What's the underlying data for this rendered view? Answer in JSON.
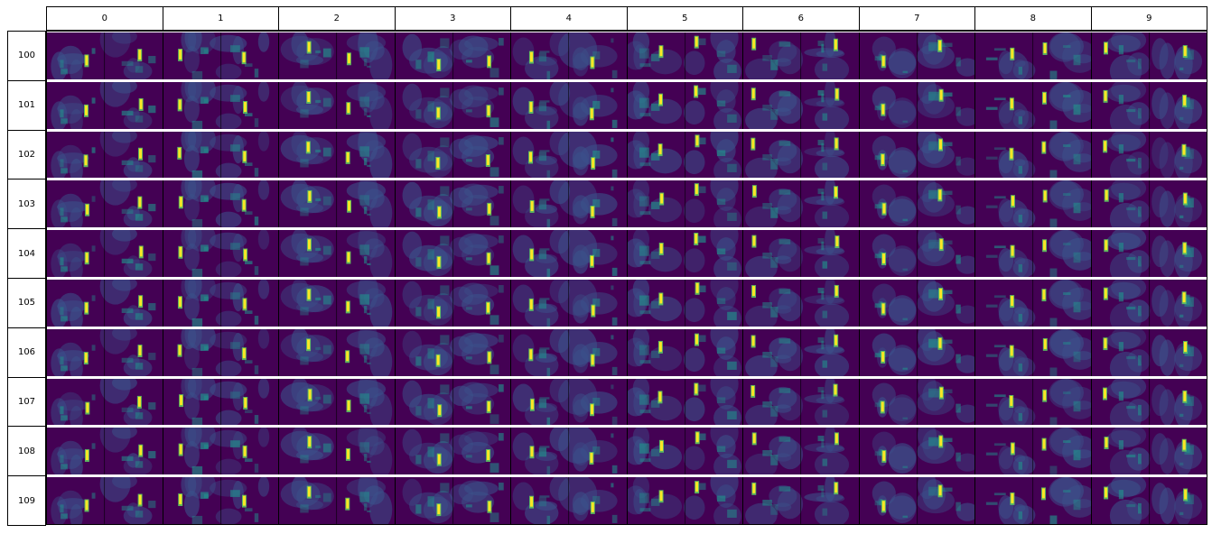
{
  "grid": {
    "column_labels": [
      "0",
      "1",
      "2",
      "3",
      "4",
      "5",
      "6",
      "7",
      "8",
      "9"
    ],
    "row_labels": [
      "100",
      "101",
      "102",
      "103",
      "104",
      "105",
      "106",
      "107",
      "108",
      "109"
    ]
  },
  "colors": {
    "background": "#440154",
    "colormap": [
      "#440154",
      "#3b528b",
      "#21918c",
      "#5ec962",
      "#fde725"
    ]
  }
}
